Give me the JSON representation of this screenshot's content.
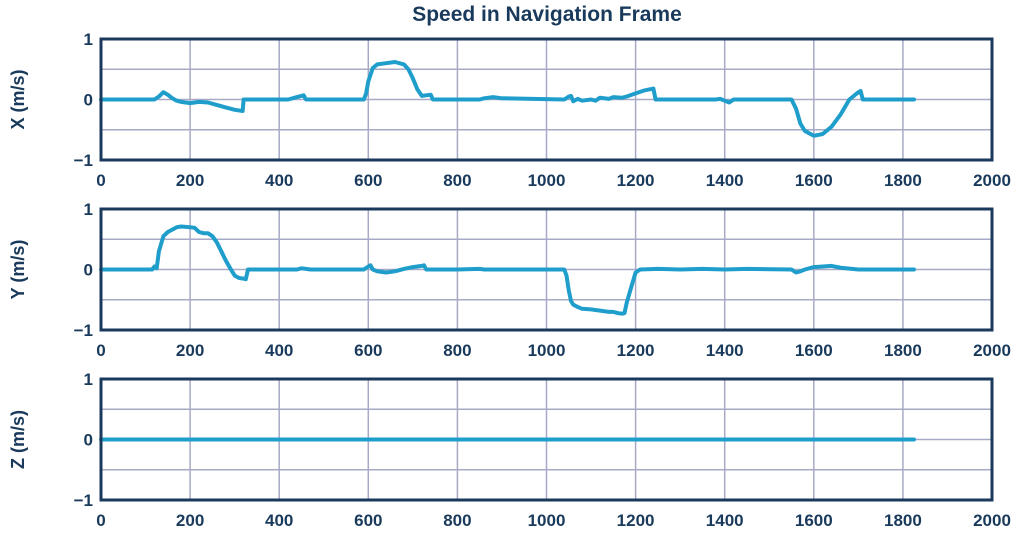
{
  "title": "Speed in Navigation Frame",
  "colors": {
    "line": "#1f9ecb",
    "frame": "#1a3a5c",
    "grid": "#a7a9c6",
    "text": "#1a3a5c"
  },
  "chart_data": [
    {
      "type": "line",
      "title": "Speed in Navigation Frame",
      "ylabel": "X (m/s)",
      "xlabel": "",
      "xlim": [
        0,
        2000
      ],
      "ylim": [
        -1,
        1
      ],
      "xticks": [
        "0",
        "200",
        "400",
        "600",
        "800",
        "1000",
        "1200",
        "1400",
        "1600",
        "1800",
        "2000"
      ],
      "yticks": [
        "−1",
        "0",
        "1"
      ],
      "grid": true,
      "series": [
        {
          "name": "X",
          "x": [
            0,
            120,
            130,
            140,
            150,
            160,
            170,
            180,
            190,
            200,
            220,
            240,
            260,
            280,
            300,
            318,
            320,
            330,
            420,
            440,
            450,
            455,
            460,
            590,
            595,
            600,
            610,
            620,
            640,
            660,
            680,
            690,
            700,
            710,
            720,
            730,
            740,
            745,
            750,
            850,
            860,
            880,
            900,
            1040,
            1050,
            1055,
            1060,
            1070,
            1080,
            1100,
            1110,
            1120,
            1140,
            1150,
            1170,
            1180,
            1200,
            1220,
            1240,
            1245,
            1250,
            1380,
            1390,
            1400,
            1410,
            1420,
            1550,
            1560,
            1570,
            1580,
            1600,
            1620,
            1640,
            1660,
            1680,
            1700,
            1705,
            1710,
            1825
          ],
          "values": [
            0,
            0,
            0.05,
            0.12,
            0.08,
            0.02,
            -0.02,
            -0.04,
            -0.05,
            -0.06,
            -0.04,
            -0.05,
            -0.09,
            -0.13,
            -0.17,
            -0.19,
            0,
            0,
            0,
            0.04,
            0.06,
            0.07,
            0,
            0,
            0.1,
            0.3,
            0.52,
            0.58,
            0.6,
            0.62,
            0.58,
            0.5,
            0.35,
            0.17,
            0.06,
            0.07,
            0.08,
            0,
            0,
            0,
            0.02,
            0.04,
            0.02,
            0,
            0.05,
            0.06,
            -0.03,
            0.01,
            -0.02,
            0,
            -0.02,
            0.03,
            0.01,
            0.04,
            0.03,
            0.05,
            0.1,
            0.15,
            0.18,
            0,
            0,
            0,
            0.01,
            -0.02,
            -0.05,
            0,
            0,
            -0.15,
            -0.4,
            -0.52,
            -0.6,
            -0.57,
            -0.45,
            -0.25,
            0,
            0.12,
            0.14,
            0,
            0
          ]
        }
      ]
    },
    {
      "type": "line",
      "ylabel": "Y (m/s)",
      "xlabel": "",
      "xlim": [
        0,
        2000
      ],
      "ylim": [
        -1,
        1
      ],
      "xticks": [
        "0",
        "200",
        "400",
        "600",
        "800",
        "1000",
        "1200",
        "1400",
        "1600",
        "1800",
        "2000"
      ],
      "yticks": [
        "−1",
        "0",
        "1"
      ],
      "grid": true,
      "series": [
        {
          "name": "Y",
          "x": [
            0,
            115,
            120,
            125,
            130,
            140,
            150,
            160,
            170,
            180,
            200,
            210,
            220,
            230,
            240,
            250,
            260,
            270,
            280,
            290,
            300,
            310,
            320,
            325,
            330,
            440,
            450,
            460,
            470,
            590,
            600,
            605,
            610,
            620,
            640,
            660,
            680,
            700,
            720,
            725,
            730,
            750,
            800,
            850,
            860,
            1040,
            1045,
            1050,
            1055,
            1060,
            1070,
            1080,
            1100,
            1120,
            1140,
            1150,
            1160,
            1170,
            1175,
            1180,
            1190,
            1200,
            1210,
            1250,
            1300,
            1350,
            1400,
            1450,
            1550,
            1560,
            1570,
            1580,
            1600,
            1620,
            1640,
            1660,
            1700,
            1825
          ],
          "values": [
            0,
            0,
            0.05,
            0.02,
            0.3,
            0.55,
            0.62,
            0.66,
            0.7,
            0.71,
            0.7,
            0.69,
            0.62,
            0.6,
            0.6,
            0.55,
            0.45,
            0.3,
            0.15,
            0.02,
            -0.1,
            -0.14,
            -0.15,
            -0.16,
            0,
            0,
            0.02,
            0.01,
            0,
            0,
            0.05,
            0.07,
            0,
            -0.03,
            -0.05,
            -0.03,
            0.01,
            0.04,
            0.06,
            0.07,
            0,
            0,
            0,
            0.01,
            0,
            0,
            -0.1,
            -0.35,
            -0.52,
            -0.58,
            -0.62,
            -0.65,
            -0.66,
            -0.68,
            -0.7,
            -0.7,
            -0.72,
            -0.73,
            -0.72,
            -0.55,
            -0.3,
            -0.05,
            0,
            0.01,
            0,
            0.01,
            0,
            0.01,
            0,
            -0.05,
            -0.03,
            0,
            0.04,
            0.05,
            0.06,
            0.03,
            0,
            0
          ]
        }
      ]
    },
    {
      "type": "line",
      "ylabel": "Z (m/s)",
      "xlabel": "",
      "xlim": [
        0,
        2000
      ],
      "ylim": [
        -1,
        1
      ],
      "xticks": [
        "0",
        "200",
        "400",
        "600",
        "800",
        "1000",
        "1200",
        "1400",
        "1600",
        "1800",
        "2000"
      ],
      "yticks": [
        "−1",
        "0",
        "1"
      ],
      "grid": true,
      "series": [
        {
          "name": "Z",
          "x": [
            0,
            1825
          ],
          "values": [
            0,
            0
          ]
        }
      ]
    }
  ]
}
